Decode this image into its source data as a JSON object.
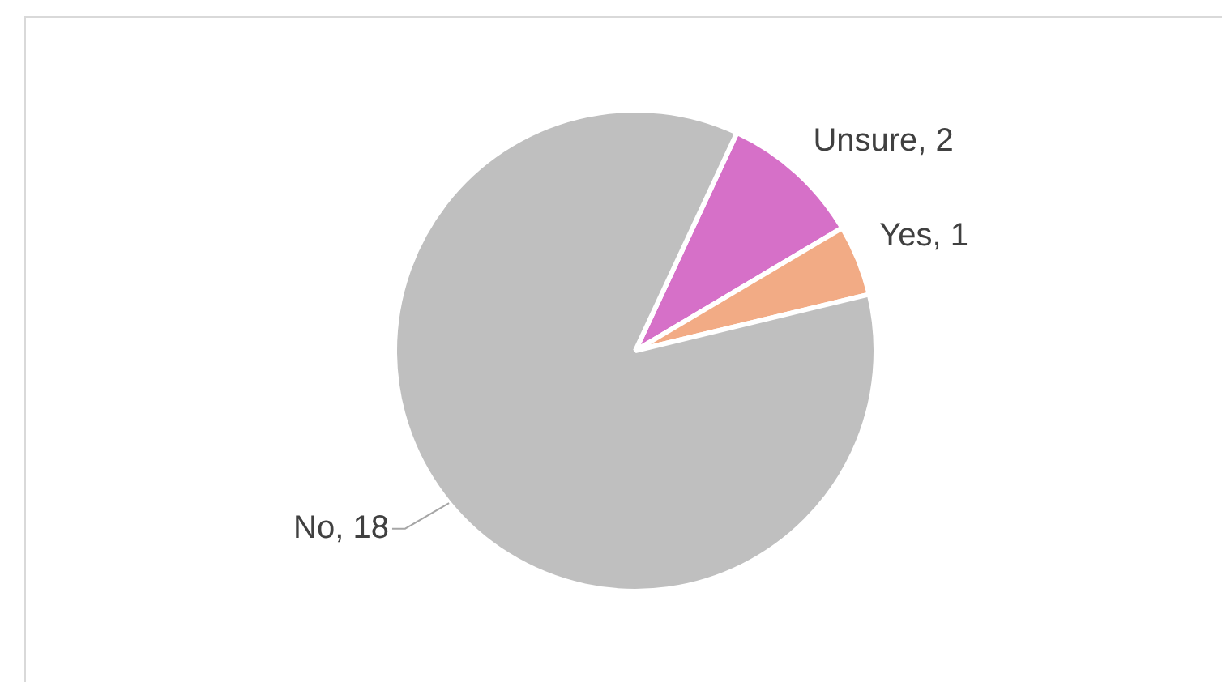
{
  "chart_data": {
    "type": "pie",
    "categories": [
      "Unsure, 2",
      "Yes, 1",
      "No, 18"
    ],
    "values": [
      2,
      1,
      18
    ],
    "colors": [
      "#d670c8",
      "#f2ab85",
      "#bfbfbf"
    ],
    "legend": false
  }
}
